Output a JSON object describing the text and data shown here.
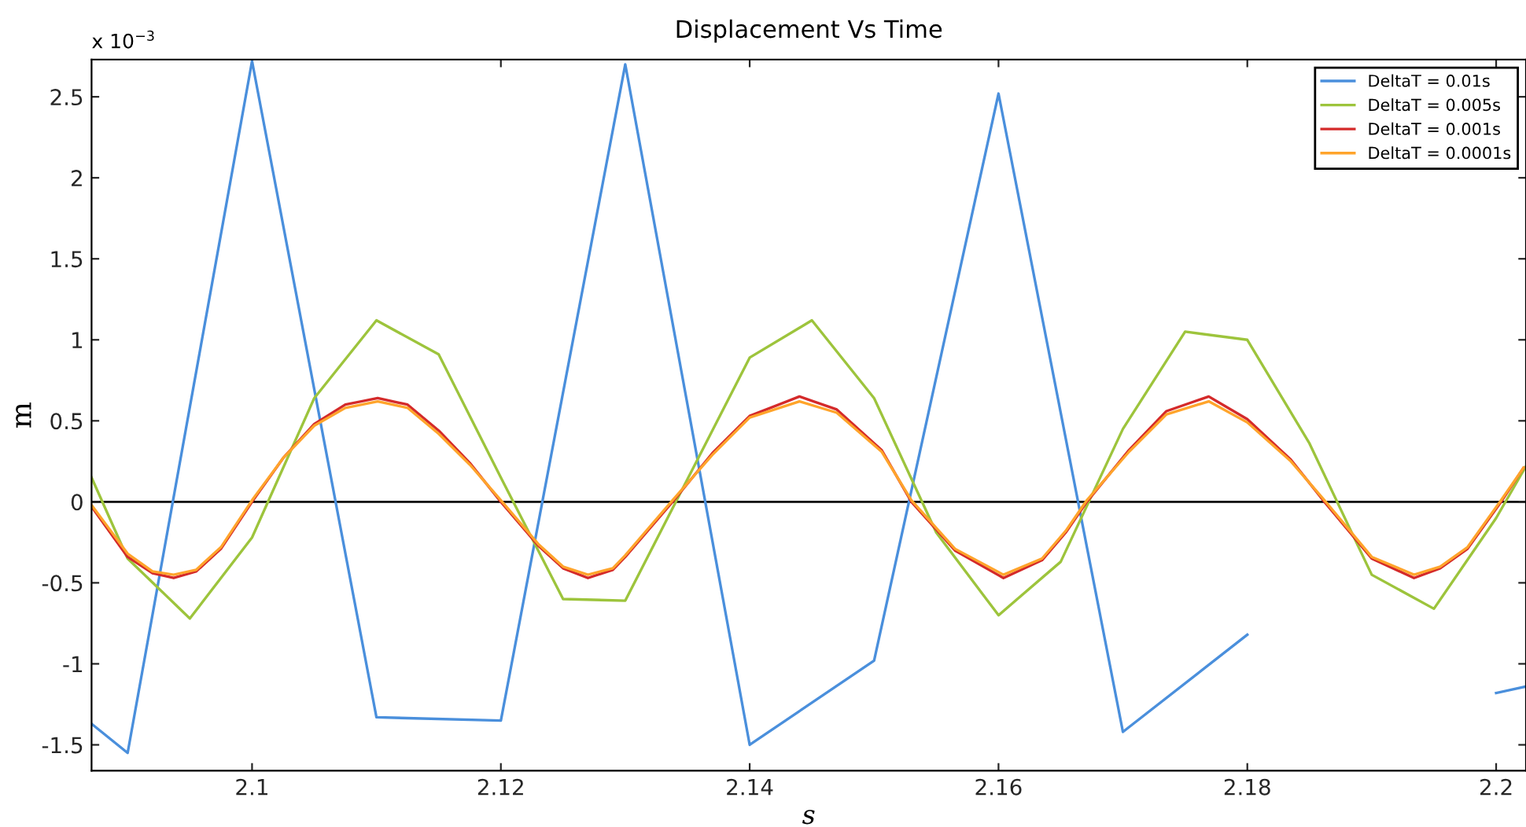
{
  "chart_data": {
    "type": "line",
    "title": "Displacement Vs Time",
    "xlabel": "s",
    "ylabel": "m",
    "annotations": [
      "x 10$^{−3}$"
    ],
    "xlim": [
      2.0871,
      2.2024
    ],
    "ylim": [
      -1.66,
      2.73
    ],
    "xticks": [
      2.1,
      2.12,
      2.14,
      2.16,
      2.18,
      2.2
    ],
    "yticks": [
      -1.5,
      -1,
      -0.5,
      0,
      0.5,
      1,
      1.5,
      2,
      2.5
    ],
    "grid": false,
    "legend": "top right",
    "marker": "none",
    "line_style": "solid",
    "ref_lines": [
      {
        "axis": "y",
        "value": 0,
        "color": "#000000"
      }
    ],
    "series": [
      {
        "name": "DeltaT = 0.01s",
        "color": "#4a8fdc",
        "x": [
          2.0871,
          2.09,
          2.1,
          2.11,
          2.12,
          2.13,
          2.14,
          2.15,
          2.16,
          2.17,
          2.18,
          2.19,
          2.2,
          2.2024
        ],
        "values": [
          -1.37,
          -1.55,
          2.72,
          -1.33,
          -1.35,
          2.7,
          -1.5,
          -0.98,
          2.52,
          -1.42,
          -0.82,
          null,
          -1.18,
          -1.14
        ]
      },
      {
        "name": "DeltaT = 0.005s",
        "color": "#9dc43c",
        "x": [
          2.0871,
          2.09,
          2.095,
          2.1,
          2.105,
          2.11,
          2.115,
          2.12,
          2.125,
          2.13,
          2.135,
          2.14,
          2.145,
          2.15,
          2.155,
          2.16,
          2.165,
          2.17,
          2.175,
          2.18,
          2.185,
          2.19,
          2.195,
          2.2,
          2.2024
        ],
        "values": [
          0.15,
          -0.35,
          -0.72,
          -0.22,
          0.64,
          1.12,
          0.91,
          0.15,
          -0.6,
          -0.61,
          0.14,
          0.89,
          1.12,
          0.64,
          -0.19,
          -0.7,
          -0.37,
          0.45,
          1.05,
          1.0,
          0.36,
          -0.45,
          -0.66,
          -0.1,
          0.22
        ]
      },
      {
        "name": "DeltaT = 0.001s",
        "color": "#d42a2a",
        "x": [
          2.0871,
          2.09,
          2.092,
          2.0937,
          2.0955,
          2.0975,
          2.1,
          2.1025,
          2.105,
          2.1075,
          2.1101,
          2.1125,
          2.115,
          2.1175,
          2.12,
          2.123,
          2.125,
          2.127,
          2.129,
          2.13,
          2.1338,
          2.137,
          2.14,
          2.144,
          2.147,
          2.1506,
          2.153,
          2.1565,
          2.1604,
          2.1635,
          2.1654,
          2.1671,
          2.1705,
          2.1735,
          2.1769,
          2.18,
          2.1835,
          2.1862,
          2.19,
          2.1934,
          2.1955,
          2.1977,
          2.2004,
          2.2022
        ],
        "values": [
          -0.03,
          -0.34,
          -0.44,
          -0.47,
          -0.43,
          -0.29,
          0.0,
          0.27,
          0.48,
          0.6,
          0.64,
          0.6,
          0.44,
          0.24,
          0.0,
          -0.27,
          -0.41,
          -0.47,
          -0.42,
          -0.34,
          0.0,
          0.3,
          0.53,
          0.65,
          0.57,
          0.32,
          0.0,
          -0.3,
          -0.47,
          -0.36,
          -0.19,
          0.0,
          0.32,
          0.56,
          0.65,
          0.51,
          0.26,
          0.0,
          -0.35,
          -0.47,
          -0.41,
          -0.29,
          0.0,
          0.21
        ]
      },
      {
        "name": "DeltaT = 0.0001s",
        "color": "#ffa42b",
        "x": [
          2.0871,
          2.09,
          2.092,
          2.0937,
          2.0955,
          2.0975,
          2.1,
          2.1025,
          2.105,
          2.1075,
          2.1101,
          2.1125,
          2.115,
          2.1175,
          2.12,
          2.123,
          2.125,
          2.127,
          2.129,
          2.13,
          2.1338,
          2.137,
          2.14,
          2.144,
          2.147,
          2.1506,
          2.153,
          2.1565,
          2.1604,
          2.1635,
          2.1654,
          2.1671,
          2.1705,
          2.1735,
          2.1769,
          2.18,
          2.1835,
          2.1862,
          2.19,
          2.1934,
          2.1955,
          2.1977,
          2.2004,
          2.2022
        ],
        "values": [
          -0.02,
          -0.32,
          -0.43,
          -0.45,
          -0.42,
          -0.28,
          0.01,
          0.27,
          0.47,
          0.58,
          0.62,
          0.58,
          0.42,
          0.23,
          0.01,
          -0.26,
          -0.4,
          -0.45,
          -0.41,
          -0.33,
          0.01,
          0.29,
          0.52,
          0.62,
          0.55,
          0.31,
          0.01,
          -0.29,
          -0.45,
          -0.35,
          -0.18,
          0.01,
          0.31,
          0.54,
          0.62,
          0.49,
          0.25,
          0.01,
          -0.34,
          -0.45,
          -0.4,
          -0.28,
          0.01,
          0.21
        ]
      }
    ]
  }
}
